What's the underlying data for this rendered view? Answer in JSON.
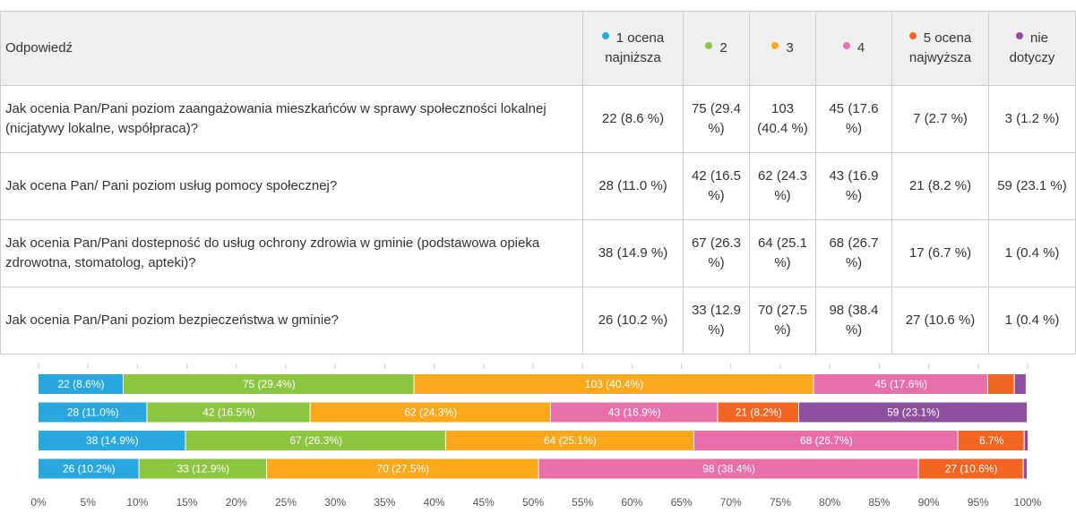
{
  "table": {
    "header": [
      "Odpowiedź",
      "1 ocena najniższa",
      "2",
      "3",
      "4",
      "5 ocena najwyższa",
      "nie dotyczy"
    ],
    "rows": [
      [
        "Jak ocenia Pan/Pani poziom zaangażowania mieszkańców w sprawy społeczności lokalnej (nicjatywy lokalne, współpraca)?",
        "22 (8.6 %)",
        "75 (29.4 %)",
        "103 (40.4 %)",
        "45 (17.6 %)",
        "7 (2.7 %)",
        "3 (1.2 %)"
      ],
      [
        "Jak ocena Pan/ Pani poziom usług pomocy społecznej?",
        "28 (11.0 %)",
        "42 (16.5 %)",
        "62 (24.3 %)",
        "43 (16.9 %)",
        "21 (8.2 %)",
        "59 (23.1 %)"
      ],
      [
        "Jak ocenia Pan/Pani dostepność do usług ochrony zdrowia w gminie (podstawowa opieka zdrowotna, stomatolog, apteki)?",
        "38 (14.9 %)",
        "67 (26.3 %)",
        "64 (25.1 %)",
        "68 (26.7 %)",
        "17 (6.7 %)",
        "1 (0.4 %)"
      ],
      [
        "Jak ocenia Pan/Pani poziom bezpieczeństwa w gminie?",
        "26 (10.2 %)",
        "33 (12.9 %)",
        "70 (27.5 %)",
        "98 (38.4 %)",
        "27 (10.6 %)",
        "1 (0.4 %)"
      ]
    ]
  },
  "chart_data": {
    "type": "stacked-barh",
    "xlim": [
      0,
      100
    ],
    "xticks": [
      {
        "value": 0,
        "label": "0%"
      },
      {
        "value": 5,
        "label": "5%"
      },
      {
        "value": 10,
        "label": "10%"
      },
      {
        "value": 15,
        "label": "15%"
      },
      {
        "value": 20,
        "label": "20%"
      },
      {
        "value": 25,
        "label": "25%"
      },
      {
        "value": 30,
        "label": "30%"
      },
      {
        "value": 35,
        "label": "35%"
      },
      {
        "value": 40,
        "label": "40%"
      },
      {
        "value": 45,
        "label": "45%"
      },
      {
        "value": 50,
        "label": "50%"
      },
      {
        "value": 55,
        "label": "55%"
      },
      {
        "value": 60,
        "label": "60%"
      },
      {
        "value": 65,
        "label": "65%"
      },
      {
        "value": 70,
        "label": "70%"
      },
      {
        "value": 75,
        "label": "75%"
      },
      {
        "value": 80,
        "label": "80%"
      },
      {
        "value": 85,
        "label": "85%"
      },
      {
        "value": 90,
        "label": "90%"
      },
      {
        "value": 95,
        "label": "95%"
      },
      {
        "value": 100,
        "label": "100%"
      }
    ],
    "series": [
      {
        "color": "#29a8e0",
        "values": [
          8.6,
          11.0,
          14.9,
          10.2
        ],
        "value_labels": [
          "22 (8.6%)",
          "28 (11.0%)",
          "38 (14.9%)",
          "26 (10.2%)"
        ]
      },
      {
        "color": "#8cc540",
        "values": [
          29.4,
          16.5,
          26.3,
          12.9
        ],
        "value_labels": [
          "75 (29.4%)",
          "42 (16.5%)",
          "67 (26.3%)",
          "33 (12.9%)"
        ]
      },
      {
        "color": "#fba81c",
        "values": [
          40.4,
          24.3,
          25.1,
          27.5
        ],
        "value_labels": [
          "103 (40.4%)",
          "62 (24.3%)",
          "64 (25.1%)",
          "70 (27.5%)"
        ]
      },
      {
        "color": "#e96fab",
        "values": [
          17.6,
          16.9,
          26.7,
          38.4
        ],
        "value_labels": [
          "45 (17.6%)",
          "43 (16.9%)",
          "68 (26.7%)",
          "98 (38.4%)"
        ]
      },
      {
        "color": "#f26522",
        "values": [
          2.7,
          8.2,
          6.7,
          10.6
        ],
        "value_labels": [
          null,
          "21 (8.2%)",
          "6.7%",
          "27 (10.6%)"
        ]
      },
      {
        "color": "#8e4f9f",
        "values": [
          1.2,
          23.1,
          0.4,
          0.4
        ],
        "value_labels": [
          null,
          "59 (23.1%)",
          null,
          null
        ]
      }
    ]
  }
}
